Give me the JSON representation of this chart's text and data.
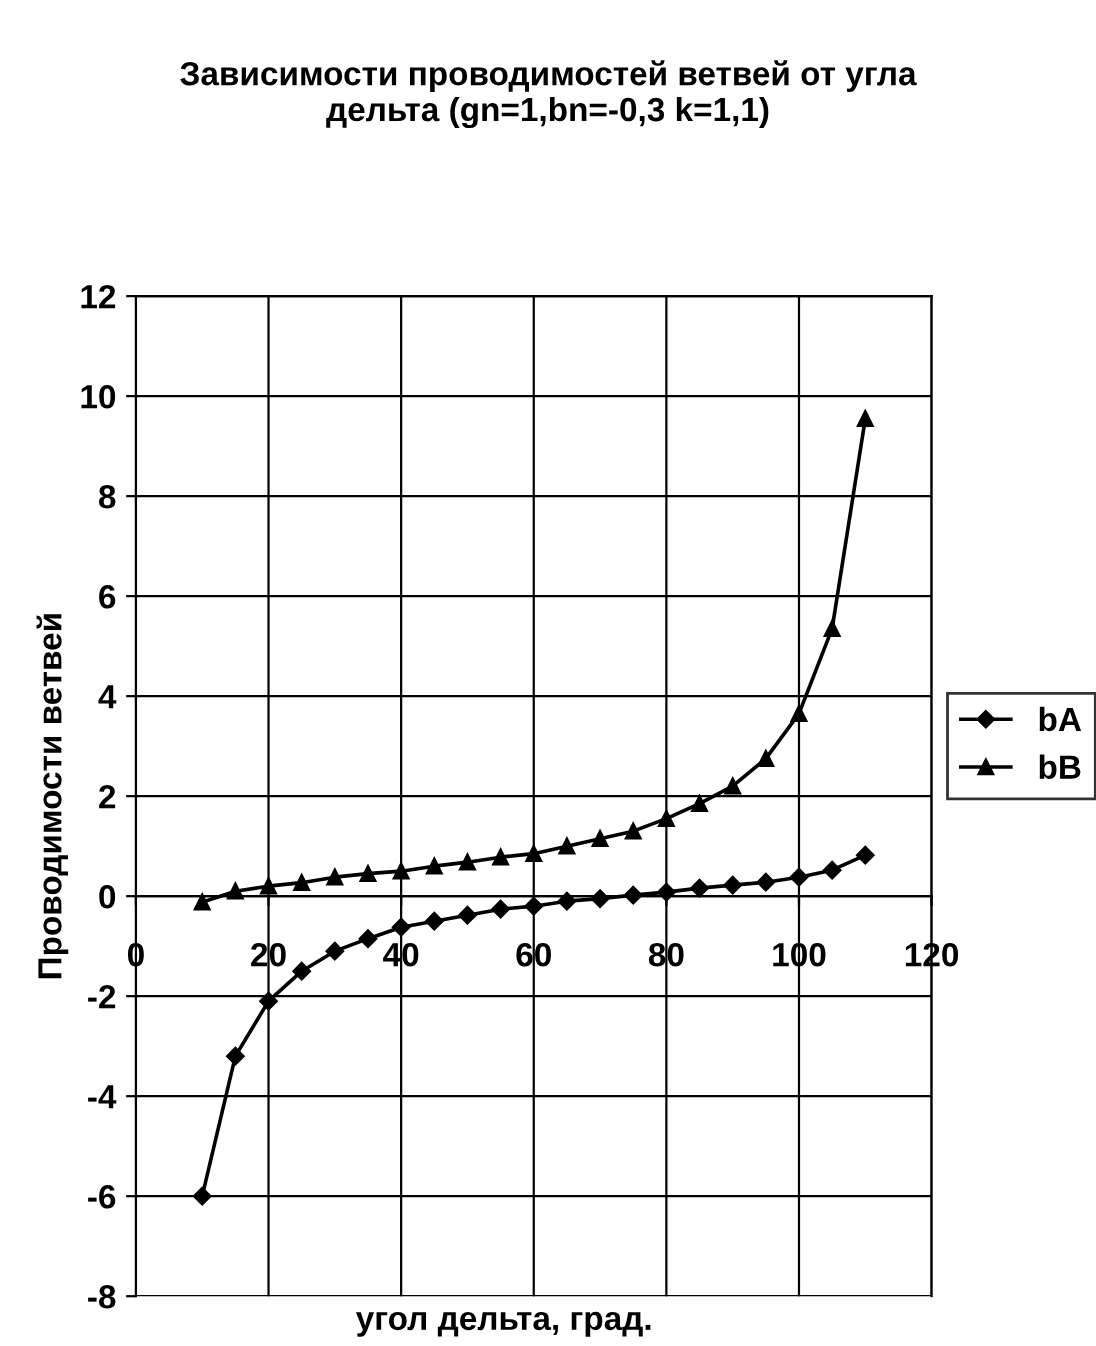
{
  "chart_data": {
    "type": "line",
    "title": "Зависимости проводимостей ветвей от угла\nдельта (gn=1,bn=-0,3 k=1,1)",
    "xlabel": "угол дельта, град.",
    "ylabel": "Проводимости ветвей",
    "x": [
      10,
      15,
      20,
      25,
      30,
      35,
      40,
      45,
      50,
      55,
      60,
      65,
      70,
      75,
      80,
      85,
      90,
      95,
      100,
      105,
      110
    ],
    "series": [
      {
        "name": "bA",
        "color": "#000000",
        "marker": "diamond",
        "values": [
          -6.0,
          -3.2,
          -2.1,
          -1.5,
          -1.1,
          -0.85,
          -0.62,
          -0.5,
          -0.38,
          -0.26,
          -0.2,
          -0.1,
          -0.05,
          0.02,
          0.08,
          0.16,
          0.22,
          0.28,
          0.38,
          0.52,
          0.82
        ]
      },
      {
        "name": "bB",
        "color": "#000000",
        "marker": "triangle",
        "values": [
          -0.12,
          0.1,
          0.2,
          0.27,
          0.38,
          0.45,
          0.5,
          0.6,
          0.68,
          0.78,
          0.85,
          1.0,
          1.15,
          1.3,
          1.55,
          1.85,
          2.2,
          2.75,
          3.65,
          5.35,
          9.55
        ]
      }
    ],
    "xlim": [
      0,
      120
    ],
    "xticks": [
      0,
      20,
      40,
      60,
      80,
      100,
      120
    ],
    "ylim": [
      -8,
      12
    ],
    "yticks": [
      -8,
      -6,
      -4,
      -2,
      0,
      2,
      4,
      6,
      8,
      10,
      12
    ],
    "grid": true,
    "legend": "right",
    "line_style": "solid"
  }
}
